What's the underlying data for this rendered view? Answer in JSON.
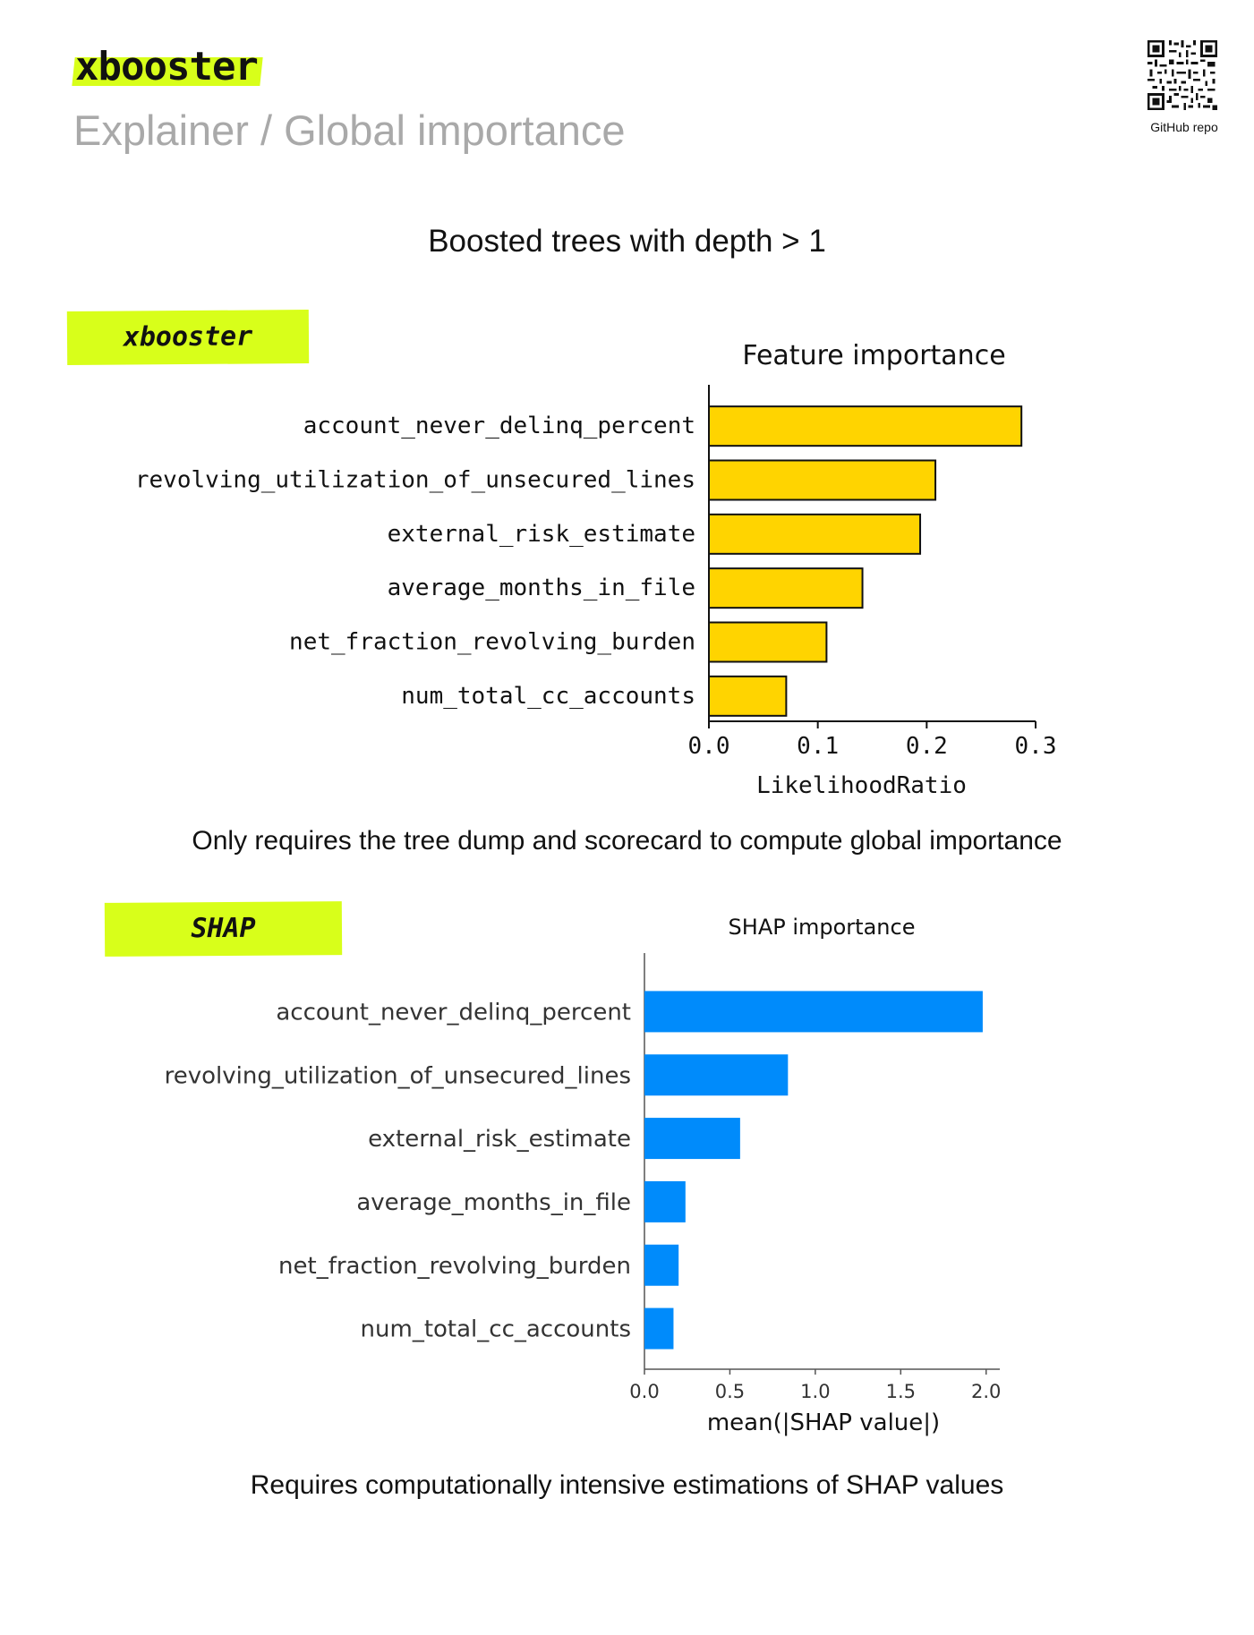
{
  "header": {
    "brand": "xbooster",
    "subtitle": "Explainer / Global importance",
    "qr_caption": "GitHub repo"
  },
  "section_title": "Boosted trees with depth > 1",
  "tags": {
    "xbooster": "xbooster",
    "shap": "SHAP"
  },
  "captions": {
    "xbooster": "Only requires the tree dump and scorecard to compute global importance",
    "shap": "Requires computationally intensive estimations of SHAP values"
  },
  "colors": {
    "accent_highlight": "#d8ff1a",
    "xbooster_bar": "#ffd400",
    "shap_bar": "#008bfb"
  },
  "chart_data": [
    {
      "type": "bar",
      "orientation": "horizontal",
      "title": "Feature importance",
      "xlabel": "LikelihoodRatio",
      "ylabel": "",
      "categories": [
        "account_never_delinq_percent",
        "revolving_utilization_of_unsecured_lines",
        "external_risk_estimate",
        "average_months_in_file",
        "net_fraction_revolving_burden",
        "num_total_cc_accounts"
      ],
      "values": [
        0.287,
        0.208,
        0.194,
        0.141,
        0.108,
        0.071
      ],
      "xlim": [
        0,
        0.3
      ],
      "xticks": [
        "0.0",
        "0.1",
        "0.2",
        "0.3"
      ],
      "grid": false
    },
    {
      "type": "bar",
      "orientation": "horizontal",
      "title": "SHAP importance",
      "xlabel": "mean(|SHAP value|)",
      "ylabel": "",
      "categories": [
        "account_never_delinq_percent",
        "revolving_utilization_of_unsecured_lines",
        "external_risk_estimate",
        "average_months_in_file",
        "net_fraction_revolving_burden",
        "num_total_cc_accounts"
      ],
      "values": [
        1.98,
        0.84,
        0.56,
        0.24,
        0.2,
        0.17
      ],
      "xlim": [
        0,
        2.08
      ],
      "xticks": [
        "0.0",
        "0.5",
        "1.0",
        "1.5",
        "2.0"
      ],
      "grid": false
    }
  ]
}
